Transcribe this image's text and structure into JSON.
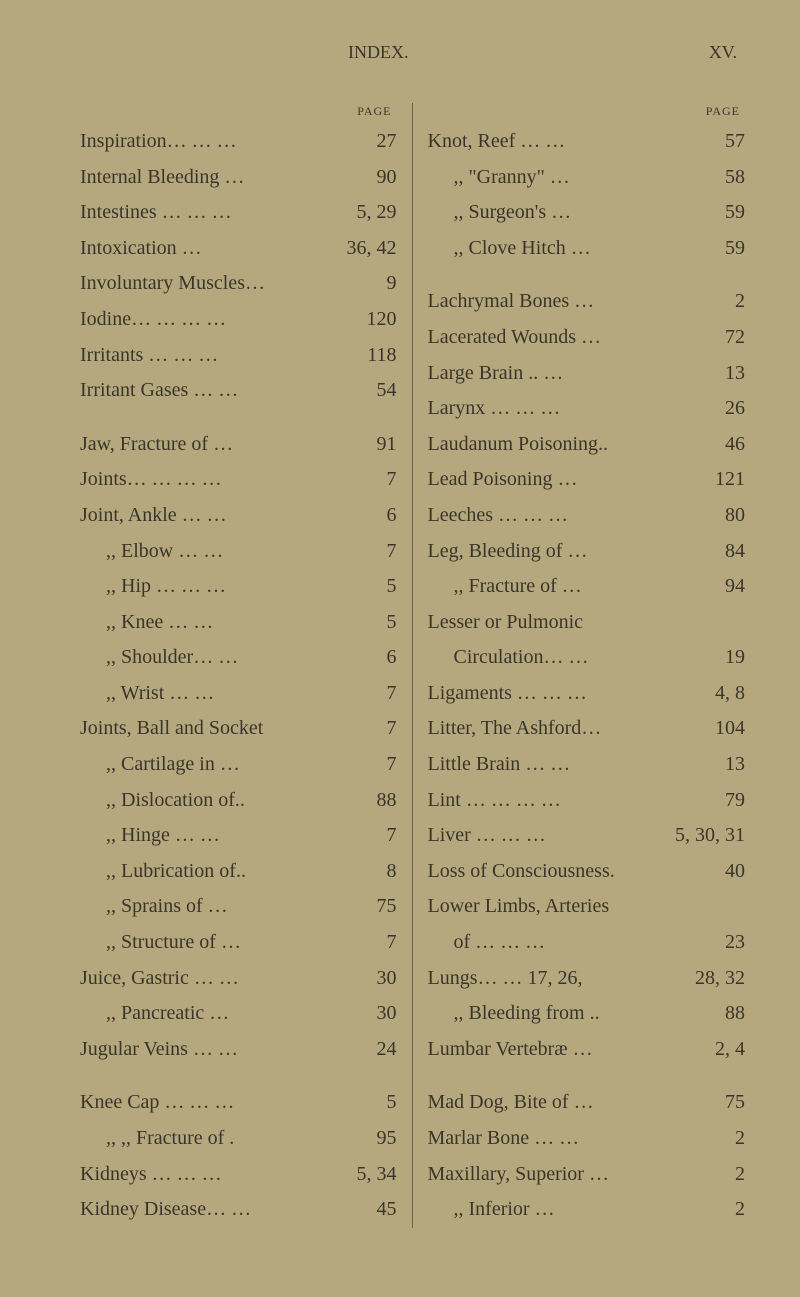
{
  "header": {
    "title": "INDEX.",
    "roman": "XV."
  },
  "page_label": "PAGE",
  "left_column": [
    {
      "text": "Inspiration… … …",
      "page": "27",
      "indent": false
    },
    {
      "text": "Internal Bleeding …",
      "page": "90",
      "indent": false
    },
    {
      "text": "Intestines … … …",
      "page": "5, 29",
      "indent": false
    },
    {
      "text": "Intoxication …",
      "page": "36, 42",
      "indent": false
    },
    {
      "text": "Involuntary Muscles…",
      "page": "9",
      "indent": false
    },
    {
      "text": "Iodine… … … …",
      "page": "120",
      "indent": false
    },
    {
      "text": "Irritants … … …",
      "page": "118",
      "indent": false
    },
    {
      "text": "Irritant Gases … …",
      "page": "54",
      "indent": false
    },
    {
      "gap": true
    },
    {
      "text": "Jaw, Fracture of …",
      "page": "91",
      "indent": false
    },
    {
      "text": "Joints… … … …",
      "page": "7",
      "indent": false
    },
    {
      "text": "Joint, Ankle … …",
      "page": "6",
      "indent": false
    },
    {
      "text": ",, Elbow … …",
      "page": "7",
      "indent": true
    },
    {
      "text": ",, Hip … … …",
      "page": "5",
      "indent": true
    },
    {
      "text": ",, Knee … …",
      "page": "5",
      "indent": true
    },
    {
      "text": ",, Shoulder… …",
      "page": "6",
      "indent": true
    },
    {
      "text": ",, Wrist … …",
      "page": "7",
      "indent": true
    },
    {
      "text": "Joints, Ball and Socket",
      "page": "7",
      "indent": false
    },
    {
      "text": ",, Cartilage in …",
      "page": "7",
      "indent": true
    },
    {
      "text": ",, Dislocation of..",
      "page": "88",
      "indent": true
    },
    {
      "text": ",, Hinge … …",
      "page": "7",
      "indent": true
    },
    {
      "text": ",, Lubrication of..",
      "page": "8",
      "indent": true
    },
    {
      "text": ",, Sprains of …",
      "page": "75",
      "indent": true
    },
    {
      "text": ",, Structure of …",
      "page": "7",
      "indent": true
    },
    {
      "text": "Juice, Gastric … …",
      "page": "30",
      "indent": false
    },
    {
      "text": ",, Pancreatic …",
      "page": "30",
      "indent": true
    },
    {
      "text": "Jugular Veins … …",
      "page": "24",
      "indent": false
    },
    {
      "gap": true
    },
    {
      "text": "Knee Cap … … …",
      "page": "5",
      "indent": false
    },
    {
      "text": ",, ,, Fracture of .",
      "page": "95",
      "indent": true
    },
    {
      "text": "Kidneys … … …",
      "page": "5, 34",
      "indent": false
    },
    {
      "text": "Kidney Disease… …",
      "page": "45",
      "indent": false
    }
  ],
  "right_column": [
    {
      "text": "Knot, Reef … …",
      "page": "57",
      "indent": false
    },
    {
      "text": ",, \"Granny\" …",
      "page": "58",
      "indent": true
    },
    {
      "text": ",, Surgeon's …",
      "page": "59",
      "indent": true
    },
    {
      "text": ",, Clove Hitch …",
      "page": "59",
      "indent": true
    },
    {
      "gap": true
    },
    {
      "text": "Lachrymal Bones …",
      "page": "2",
      "indent": false
    },
    {
      "text": "Lacerated Wounds …",
      "page": "72",
      "indent": false
    },
    {
      "text": "Large Brain .. …",
      "page": "13",
      "indent": false
    },
    {
      "text": "Larynx … … …",
      "page": "26",
      "indent": false
    },
    {
      "text": "Laudanum Poisoning..",
      "page": "46",
      "indent": false
    },
    {
      "text": "Lead Poisoning …",
      "page": "121",
      "indent": false
    },
    {
      "text": "Leeches … … …",
      "page": "80",
      "indent": false
    },
    {
      "text": "Leg, Bleeding of …",
      "page": "84",
      "indent": false
    },
    {
      "text": ",, Fracture of …",
      "page": "94",
      "indent": true
    },
    {
      "text": "Lesser or Pulmonic",
      "page": "",
      "indent": false
    },
    {
      "text": "Circulation… …",
      "page": "19",
      "indent": true
    },
    {
      "text": "Ligaments … … …",
      "page": "4, 8",
      "indent": false
    },
    {
      "text": "Litter, The Ashford…",
      "page": "104",
      "indent": false
    },
    {
      "text": "Little Brain … …",
      "page": "13",
      "indent": false
    },
    {
      "text": "Lint … … … …",
      "page": "79",
      "indent": false
    },
    {
      "text": "Liver … … …",
      "page": "5, 30, 31",
      "indent": false
    },
    {
      "text": "Loss of Consciousness.",
      "page": "40",
      "indent": false
    },
    {
      "text": "Lower Limbs, Arteries",
      "page": "",
      "indent": false
    },
    {
      "text": "of … … …",
      "page": "23",
      "indent": true
    },
    {
      "text": "Lungs… … 17, 26,",
      "page": "28, 32",
      "indent": false
    },
    {
      "text": ",, Bleeding from ..",
      "page": "88",
      "indent": true
    },
    {
      "text": "Lumbar Vertebræ …",
      "page": "2, 4",
      "indent": false
    },
    {
      "gap": true
    },
    {
      "text": "Mad Dog, Bite of …",
      "page": "75",
      "indent": false
    },
    {
      "text": "Marlar Bone … …",
      "page": "2",
      "indent": false
    },
    {
      "text": "Maxillary, Superior …",
      "page": "2",
      "indent": false
    },
    {
      "text": ",, Inferior …",
      "page": "2",
      "indent": true
    }
  ]
}
